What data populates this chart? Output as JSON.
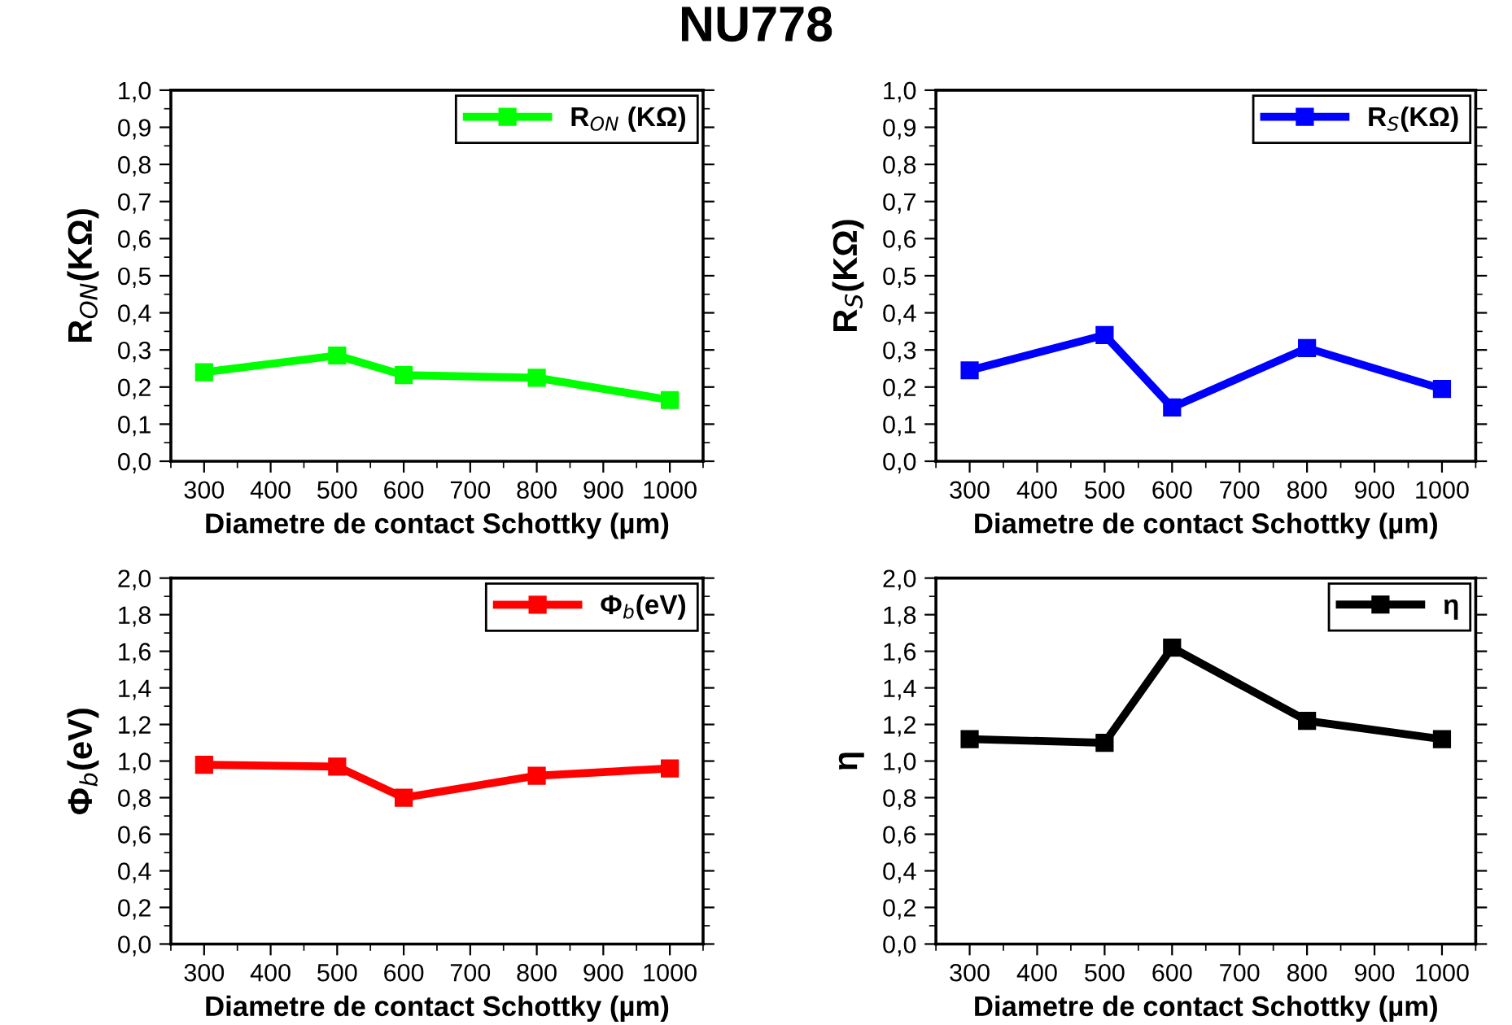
{
  "chart_data": [
    {
      "type": "line",
      "title": "NU778",
      "xlabel": "Diametre de contact Schottky (µm)",
      "ylabel": "R$_{ON}$(KΩ)",
      "x": [
        300,
        500,
        600,
        800,
        1000
      ],
      "series": [
        {
          "name": "R$_{ON}$ (KΩ)",
          "color": "#00ff00",
          "values": [
            0.24,
            0.285,
            0.232,
            0.225,
            0.165
          ]
        }
      ],
      "xlim": [
        250,
        1050
      ],
      "xticks": [
        300,
        400,
        500,
        600,
        700,
        800,
        900,
        1000
      ],
      "ylim": [
        0,
        1
      ],
      "yticks": [
        {
          "value": 0,
          "label": "0,0"
        },
        {
          "value": 0.1,
          "label": "0,1"
        },
        {
          "value": 0.2,
          "label": "0,2"
        },
        {
          "value": 0.3,
          "label": "0,3"
        },
        {
          "value": 0.4,
          "label": "0,4"
        },
        {
          "value": 0.5,
          "label": "0,5"
        },
        {
          "value": 0.6,
          "label": "0,6"
        },
        {
          "value": 0.7,
          "label": "0,7"
        },
        {
          "value": 0.8,
          "label": "0,8"
        },
        {
          "value": 0.9,
          "label": "0,9"
        },
        {
          "value": 1,
          "label": "1,0"
        }
      ],
      "marker": "square",
      "line_style": "solid",
      "legend": "top right",
      "grid": false
    },
    {
      "type": "line",
      "xlabel": "Diametre de contact Schottky (µm)",
      "ylabel": "R$_{S}$(KΩ)",
      "x": [
        300,
        500,
        600,
        800,
        1000
      ],
      "series": [
        {
          "name": "R$_{S}$(KΩ)",
          "color": "#0000ff",
          "values": [
            0.245,
            0.34,
            0.145,
            0.305,
            0.195
          ]
        }
      ],
      "xlim": [
        250,
        1050
      ],
      "xticks": [
        300,
        400,
        500,
        600,
        700,
        800,
        900,
        1000
      ],
      "ylim": [
        0,
        1
      ],
      "yticks": [
        {
          "value": 0,
          "label": "0,0"
        },
        {
          "value": 0.1,
          "label": "0,1"
        },
        {
          "value": 0.2,
          "label": "0,2"
        },
        {
          "value": 0.3,
          "label": "0,3"
        },
        {
          "value": 0.4,
          "label": "0,4"
        },
        {
          "value": 0.5,
          "label": "0,5"
        },
        {
          "value": 0.6,
          "label": "0,6"
        },
        {
          "value": 0.7,
          "label": "0,7"
        },
        {
          "value": 0.8,
          "label": "0,8"
        },
        {
          "value": 0.9,
          "label": "0,9"
        },
        {
          "value": 1,
          "label": "1,0"
        }
      ],
      "marker": "square",
      "line_style": "solid",
      "legend": "top right",
      "grid": false
    },
    {
      "type": "line",
      "xlabel": "Diametre de contact Schottky (µm)",
      "ylabel": "Φ$_{b}$(eV)",
      "x": [
        300,
        500,
        600,
        800,
        1000
      ],
      "series": [
        {
          "name": "Φ$_{b}$(eV)",
          "color": "#ff0000",
          "values": [
            0.98,
            0.97,
            0.8,
            0.92,
            0.96
          ]
        }
      ],
      "xlim": [
        250,
        1050
      ],
      "xticks": [
        300,
        400,
        500,
        600,
        700,
        800,
        900,
        1000
      ],
      "ylim": [
        0,
        2
      ],
      "yticks": [
        {
          "value": 0,
          "label": "0,0"
        },
        {
          "value": 0.2,
          "label": "0,2"
        },
        {
          "value": 0.4,
          "label": "0,4"
        },
        {
          "value": 0.6,
          "label": "0,6"
        },
        {
          "value": 0.8,
          "label": "0,8"
        },
        {
          "value": 1,
          "label": "1,0"
        },
        {
          "value": 1.2,
          "label": "1,2"
        },
        {
          "value": 1.4,
          "label": "1,4"
        },
        {
          "value": 1.6,
          "label": "1,6"
        },
        {
          "value": 1.8,
          "label": "1,8"
        },
        {
          "value": 2,
          "label": "2,0"
        }
      ],
      "marker": "square",
      "line_style": "solid",
      "legend": "top right",
      "grid": false
    },
    {
      "type": "line",
      "xlabel": "Diametre de contact Schottky (µm)",
      "ylabel": "η",
      "x": [
        300,
        500,
        600,
        800,
        1000
      ],
      "series": [
        {
          "name": "η",
          "color": "#000000",
          "values": [
            1.12,
            1.1,
            1.62,
            1.22,
            1.12
          ]
        }
      ],
      "xlim": [
        250,
        1050
      ],
      "xticks": [
        300,
        400,
        500,
        600,
        700,
        800,
        900,
        1000
      ],
      "ylim": [
        0,
        2
      ],
      "yticks": [
        {
          "value": 0,
          "label": "0,0"
        },
        {
          "value": 0.2,
          "label": "0,2"
        },
        {
          "value": 0.4,
          "label": "0,4"
        },
        {
          "value": 0.6,
          "label": "0,6"
        },
        {
          "value": 0.8,
          "label": "0,8"
        },
        {
          "value": 1,
          "label": "1,0"
        },
        {
          "value": 1.2,
          "label": "1,2"
        },
        {
          "value": 1.4,
          "label": "1,4"
        },
        {
          "value": 1.6,
          "label": "1,6"
        },
        {
          "value": 1.8,
          "label": "1,8"
        },
        {
          "value": 2,
          "label": "2,0"
        }
      ],
      "marker": "square",
      "line_style": "solid",
      "legend": "top right",
      "grid": false
    }
  ]
}
